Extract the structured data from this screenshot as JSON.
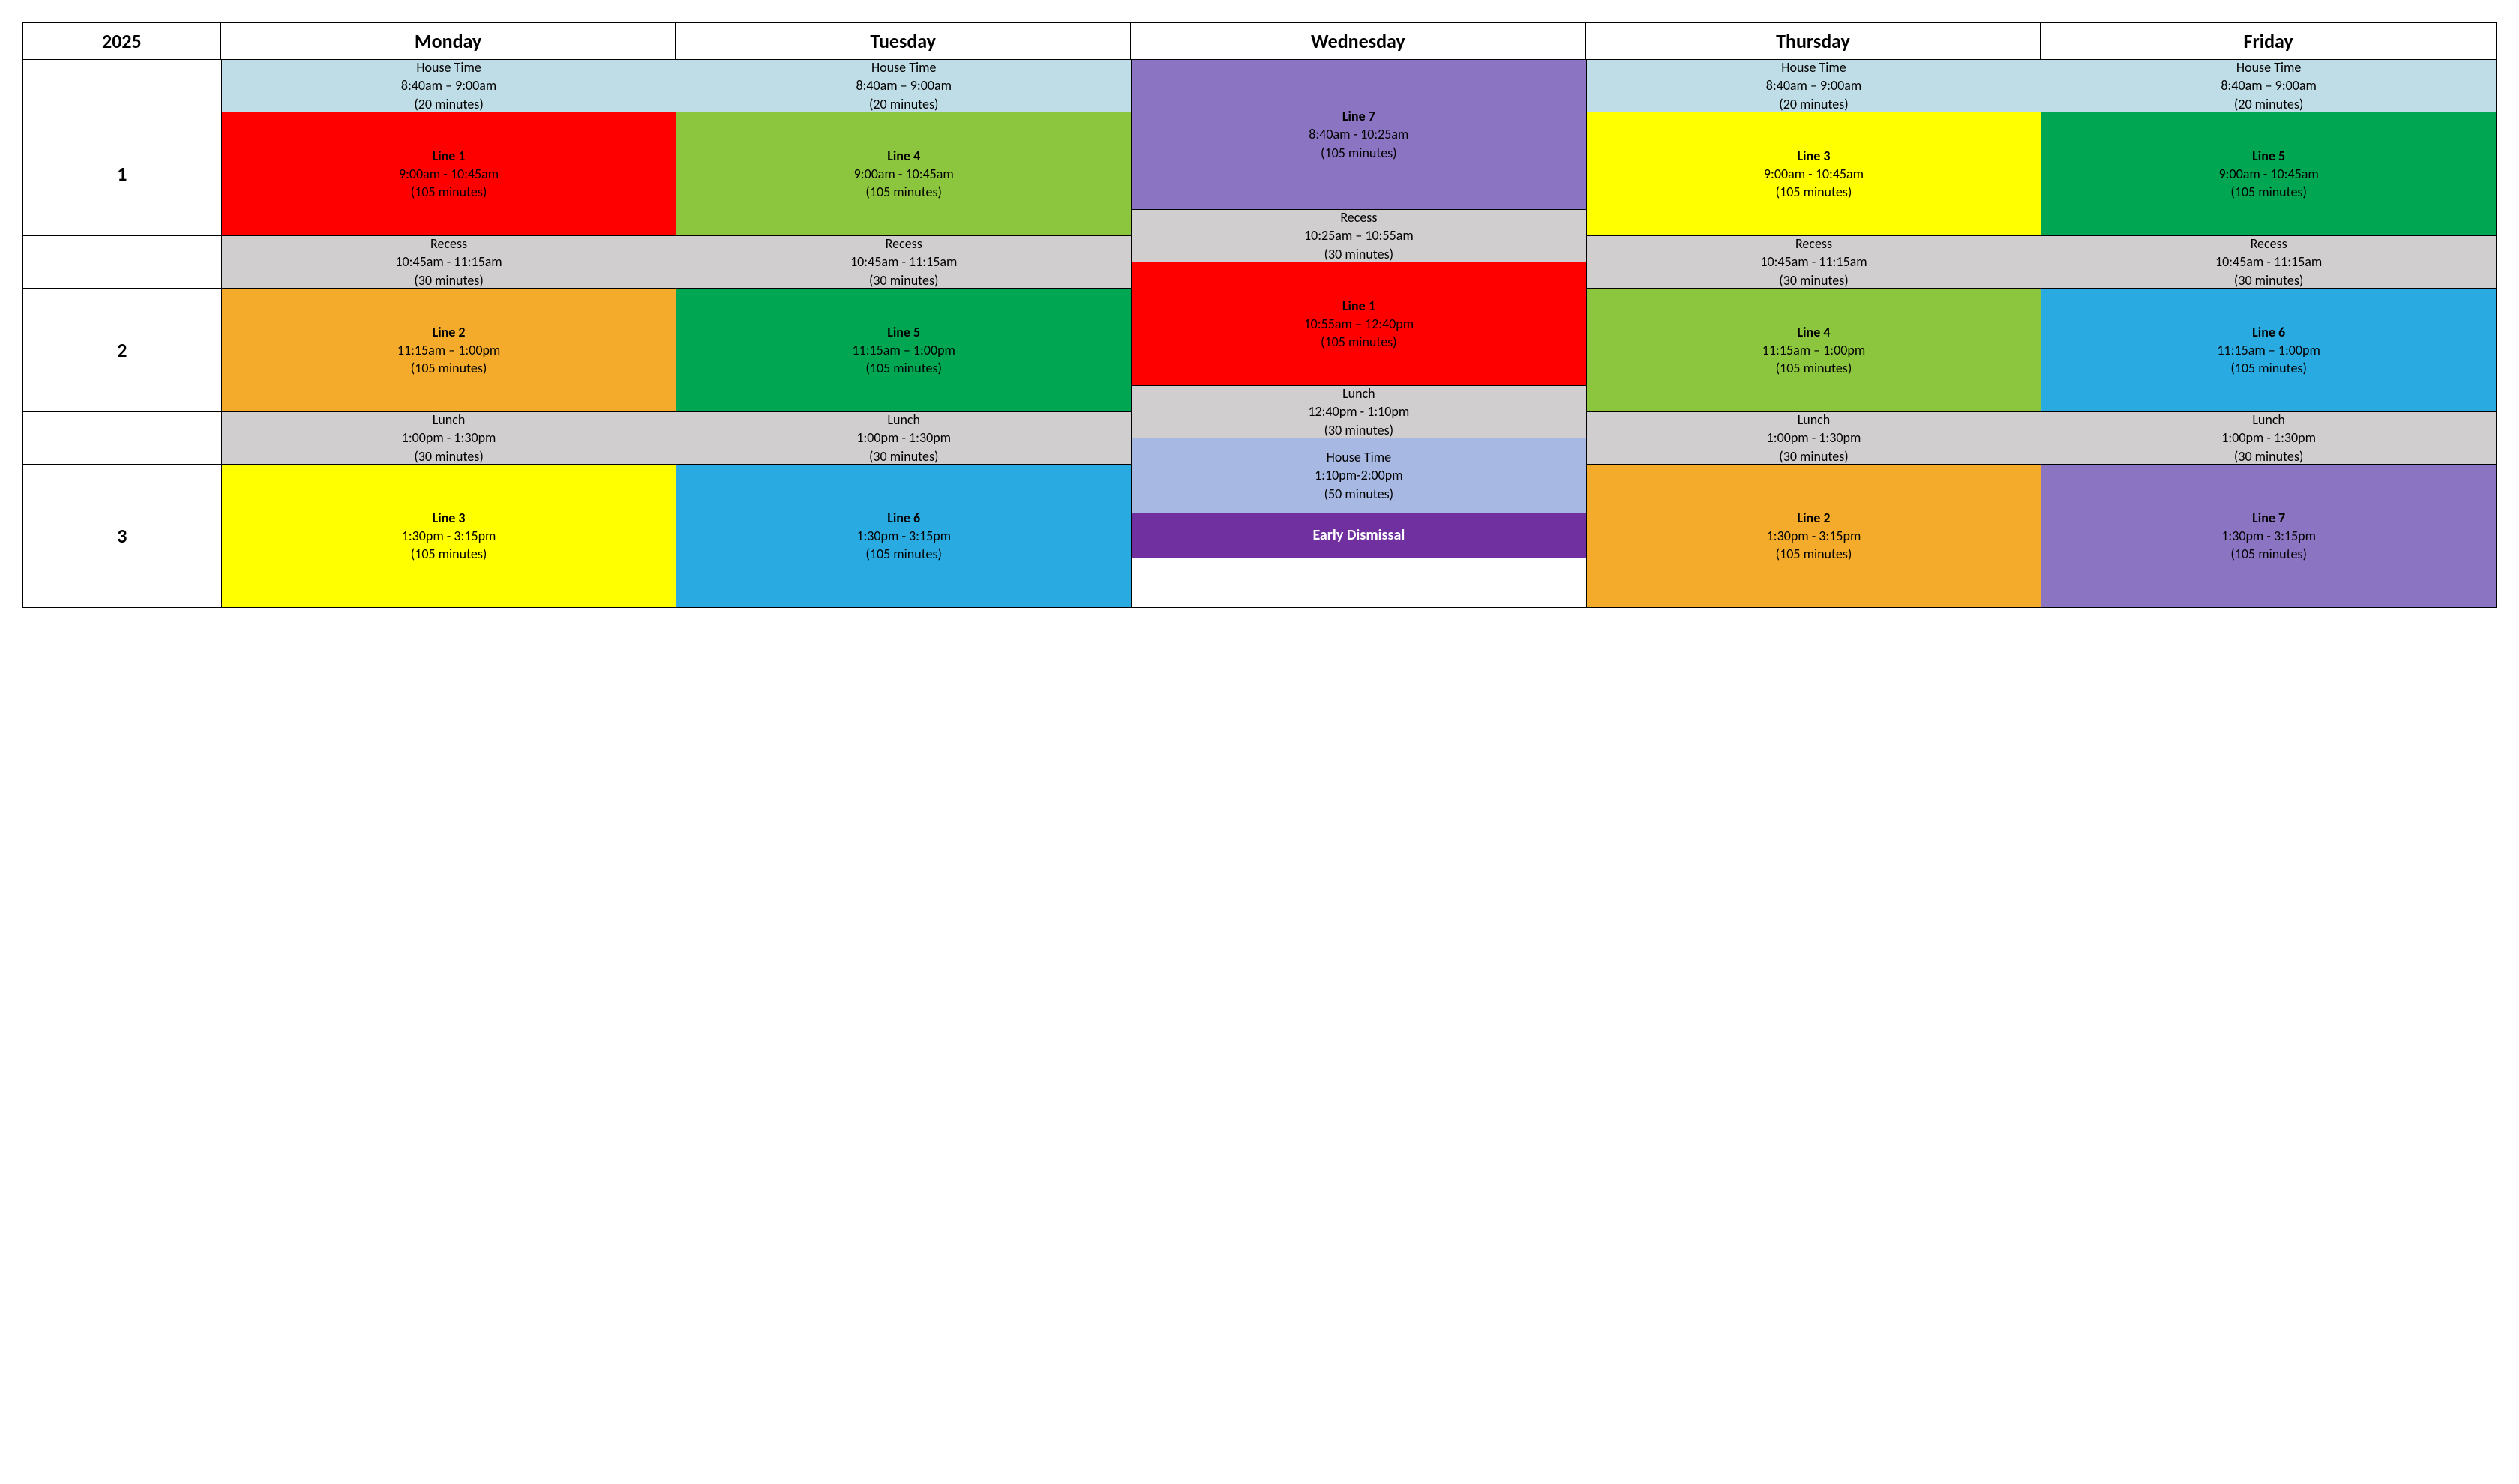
{
  "year": "2025",
  "days": [
    "Monday",
    "Tuesday",
    "Wednesday",
    "Thursday",
    "Friday"
  ],
  "session_labels": [
    "1",
    "2",
    "3"
  ],
  "colors": {
    "house_light": "#bedde6",
    "recess": "#d0cece",
    "lunch": "#d0cece",
    "line1": "#fe0000",
    "line2": "#f4ab2b",
    "line3": "#ffff00",
    "line4": "#8cc63e",
    "line5": "#00a651",
    "line6": "#29abe2",
    "line7": "#8b74c2",
    "house_wed": "#a7b9e3",
    "early": "#7030a0",
    "blank": "#ffffff"
  },
  "house": {
    "title": "House Time",
    "time": "8:40am – 9:00am",
    "duration": "(20 minutes)"
  },
  "recess": {
    "title": "Recess",
    "time": "10:45am - 11:15am",
    "duration": "(30 minutes)"
  },
  "lunch": {
    "title": "Lunch",
    "time": "1:00pm - 1:30pm",
    "duration": "(30 minutes)"
  },
  "session1_time": "9:00am - 10:45am",
  "session2_time": "11:15am – 1:00pm",
  "session3_time": "1:30pm - 3:15pm",
  "session_duration": "(105 minutes)",
  "monday": {
    "s1": "Line 1",
    "s2": "Line 2",
    "s3": "Line 3"
  },
  "tuesday": {
    "s1": "Line 4",
    "s2": "Line 5",
    "s3": "Line 6"
  },
  "thursday": {
    "s1": "Line 3",
    "s2": "Line 4",
    "s3": "Line 2"
  },
  "friday": {
    "s1": "Line 5",
    "s2": "Line 6",
    "s3": "Line 7"
  },
  "wednesday": {
    "line7": {
      "title": "Line 7",
      "time": "8:40am - 10:25am",
      "duration": "(105 minutes)"
    },
    "recess": {
      "title": "Recess",
      "time": "10:25am – 10:55am",
      "duration": "(30 minutes)"
    },
    "line1": {
      "title": "Line 1",
      "time": "10:55am – 12:40pm",
      "duration": "(105 minutes)"
    },
    "lunch": {
      "title": "Lunch",
      "time": "12:40pm - 1:10pm",
      "duration": "(30 minutes)"
    },
    "house": {
      "title": "House Time",
      "time": "1:10pm-2:00pm",
      "duration": "(50 minutes)"
    },
    "early": "Early Dismissal"
  }
}
